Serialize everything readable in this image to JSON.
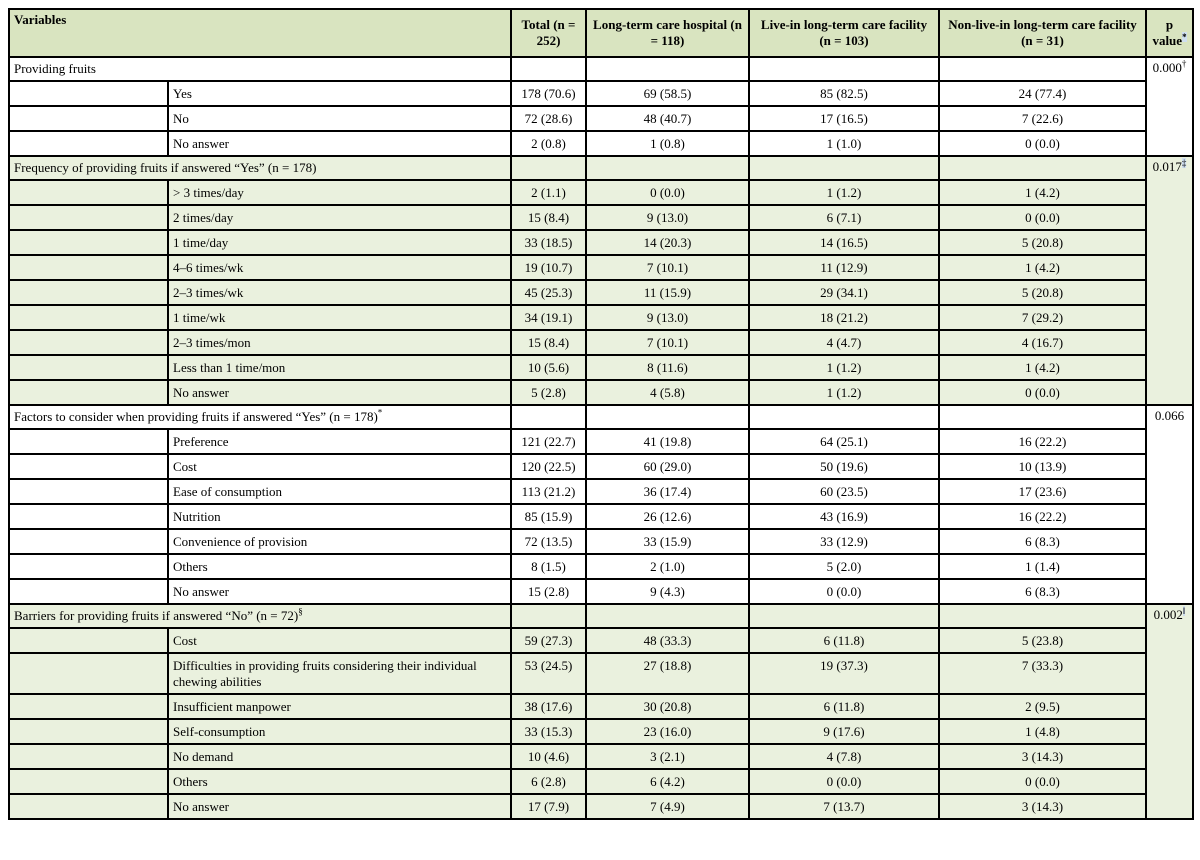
{
  "table": {
    "header": {
      "variables": "Variables",
      "total": "Total (n = 252)",
      "hospital": "Long-term care hospital (n = 118)",
      "live_in": "Live-in long-term care facility (n = 103)",
      "non_live_in": "Non-live-in long-term care facility (n = 31)",
      "p_line1": "p",
      "p_line2": "value",
      "p_sup": "*"
    },
    "sections": [
      {
        "title": "Providing fruits",
        "title_sup": "",
        "p_value": "0.000",
        "p_sup": "†",
        "p_sup_highlighted": false,
        "bg": "white",
        "rows": [
          {
            "label": "Yes",
            "values": [
              "178 (70.6)",
              "69 (58.5)",
              "85 (82.5)",
              "24 (77.4)"
            ]
          },
          {
            "label": "No",
            "values": [
              "72 (28.6)",
              "48 (40.7)",
              "17 (16.5)",
              "7 (22.6)"
            ]
          },
          {
            "label": "No answer",
            "values": [
              "2 (0.8)",
              "1 (0.8)",
              "1 (1.0)",
              "0 (0.0)"
            ]
          }
        ]
      },
      {
        "title": "Frequency of providing fruits if answered “Yes” (n = 178)",
        "title_sup": "",
        "p_value": "0.017",
        "p_sup": "‡",
        "p_sup_highlighted": true,
        "bg": "green",
        "rows": [
          {
            "label": "> 3 times/day",
            "values": [
              "2 (1.1)",
              "0 (0.0)",
              "1 (1.2)",
              "1 (4.2)"
            ]
          },
          {
            "label": "2 times/day",
            "values": [
              "15 (8.4)",
              "9 (13.0)",
              "6 (7.1)",
              "0 (0.0)"
            ]
          },
          {
            "label": "1 time/day",
            "values": [
              "33 (18.5)",
              "14 (20.3)",
              "14 (16.5)",
              "5 (20.8)"
            ]
          },
          {
            "label": "4–6 times/wk",
            "values": [
              "19 (10.7)",
              "7 (10.1)",
              "11 (12.9)",
              "1 (4.2)"
            ]
          },
          {
            "label": "2–3 times/wk",
            "values": [
              "45 (25.3)",
              "11 (15.9)",
              "29 (34.1)",
              "5 (20.8)"
            ]
          },
          {
            "label": "1 time/wk",
            "values": [
              "34 (19.1)",
              "9 (13.0)",
              "18 (21.2)",
              "7 (29.2)"
            ]
          },
          {
            "label": "2–3 times/mon",
            "values": [
              "15 (8.4)",
              "7 (10.1)",
              "4 (4.7)",
              "4 (16.7)"
            ]
          },
          {
            "label": "Less than 1 time/mon",
            "values": [
              "10 (5.6)",
              "8 (11.6)",
              "1 (1.2)",
              "1 (4.2)"
            ]
          },
          {
            "label": "No answer",
            "values": [
              "5 (2.8)",
              "4 (5.8)",
              "1 (1.2)",
              "0 (0.0)"
            ]
          }
        ]
      },
      {
        "title": "Factors to consider when providing fruits if answered “Yes” (n = 178)",
        "title_sup": "*",
        "p_value": "0.066",
        "p_sup": "",
        "p_sup_highlighted": false,
        "bg": "white",
        "rows": [
          {
            "label": "Preference",
            "values": [
              "121 (22.7)",
              "41 (19.8)",
              "64 (25.1)",
              "16 (22.2)"
            ]
          },
          {
            "label": "Cost",
            "values": [
              "120 (22.5)",
              "60 (29.0)",
              "50 (19.6)",
              "10 (13.9)"
            ]
          },
          {
            "label": "Ease of consumption",
            "values": [
              "113 (21.2)",
              "36 (17.4)",
              "60 (23.5)",
              "17 (23.6)"
            ]
          },
          {
            "label": "Nutrition",
            "values": [
              "85 (15.9)",
              "26 (12.6)",
              "43 (16.9)",
              "16 (22.2)"
            ]
          },
          {
            "label": "Convenience of provision",
            "values": [
              "72 (13.5)",
              "33 (15.9)",
              "33 (12.9)",
              "6 (8.3)"
            ]
          },
          {
            "label": "Others",
            "values": [
              "8 (1.5)",
              "2 (1.0)",
              "5 (2.0)",
              "1 (1.4)"
            ]
          },
          {
            "label": "No answer",
            "values": [
              "15 (2.8)",
              "9 (4.3)",
              "0 (0.0)",
              "6 (8.3)"
            ]
          }
        ]
      },
      {
        "title": "Barriers for providing fruits if answered “No” (n = 72)",
        "title_sup": "§",
        "p_value": "0.002",
        "p_sup": "‖",
        "p_sup_highlighted": true,
        "bg": "green",
        "rows": [
          {
            "label": "Cost",
            "values": [
              "59 (27.3)",
              "48 (33.3)",
              "6 (11.8)",
              "5 (23.8)"
            ]
          },
          {
            "label": "Difficulties in providing fruits considering their individual chewing abilities",
            "values": [
              "53 (24.5)",
              "27 (18.8)",
              "19 (37.3)",
              "7 (33.3)"
            ]
          },
          {
            "label": "Insufficient manpower",
            "values": [
              "38 (17.6)",
              "30 (20.8)",
              "6 (11.8)",
              "2 (9.5)"
            ]
          },
          {
            "label": "Self-consumption",
            "values": [
              "33 (15.3)",
              "23 (16.0)",
              "9 (17.6)",
              "1 (4.8)"
            ]
          },
          {
            "label": "No demand",
            "values": [
              "10 (4.6)",
              "3 (2.1)",
              "4 (7.8)",
              "3 (14.3)"
            ]
          },
          {
            "label": "Others",
            "values": [
              "6 (2.8)",
              "6 (4.2)",
              "0 (0.0)",
              "0 (0.0)"
            ]
          },
          {
            "label": "No answer",
            "values": [
              "17 (7.9)",
              "7 (4.9)",
              "7 (13.7)",
              "3 (14.3)"
            ]
          }
        ]
      }
    ]
  },
  "colors": {
    "header_bg": "#d9e4c0",
    "section_green": "#eaf1de",
    "border": "#000000",
    "sup_highlight": "#cfdff0"
  }
}
